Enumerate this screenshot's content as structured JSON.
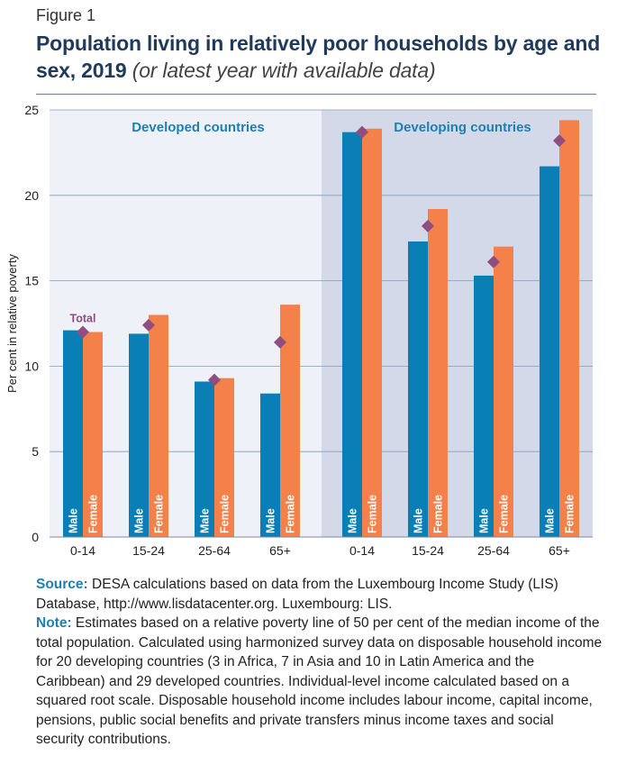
{
  "figure_label": "Figure 1",
  "title": "Population living in relatively poor households by age and sex, 2019",
  "title_sub": "(or latest year with available data)",
  "chart_data": {
    "type": "bar",
    "ylabel": "Per cent in relative poverty",
    "ylim": [
      0,
      25
    ],
    "yticks": [
      0,
      5,
      10,
      15,
      20,
      25
    ],
    "grid": true,
    "groups": [
      {
        "name": "Developed countries",
        "categories": [
          "0-14",
          "15-24",
          "25-64",
          "65+"
        ],
        "male": [
          12.1,
          11.9,
          9.1,
          8.4
        ],
        "female": [
          12.0,
          13.0,
          9.3,
          13.6
        ],
        "total": [
          12.0,
          12.4,
          9.2,
          11.4
        ]
      },
      {
        "name": "Developing countries",
        "categories": [
          "0-14",
          "15-24",
          "25-64",
          "65+"
        ],
        "male": [
          23.7,
          17.3,
          15.3,
          21.7
        ],
        "female": [
          23.9,
          19.2,
          17.0,
          24.4
        ],
        "total": [
          23.7,
          18.2,
          16.1,
          23.2
        ]
      }
    ],
    "bar_labels": {
      "male": "Male",
      "female": "Female"
    },
    "total_label": "Total",
    "colors": {
      "male": "#0a7fb5",
      "female": "#f4804a",
      "total": "#8f4e7f",
      "panel_left": "#eef1f8",
      "panel_right": "#d4d9ea",
      "group_label": "#1f7fb2"
    }
  },
  "notes": {
    "source_label": "Source:",
    "source_text": "DESA calculations based on data from the Luxembourg Income Study (LIS) Database, http://www.lisdatacenter.org. Luxembourg: LIS.",
    "note_label": "Note:",
    "note_text": "Estimates based on a relative poverty line of 50 per cent of the median income of the total population. Calculated using harmonized survey data on disposable household income for 20 developing countries (3 in Africa, 7 in Asia and 10 in Latin America and the Caribbean) and 29 developed countries. Individual-level income calculated based on a squared root scale. Disposable household income includes labour income, capital income, pensions, public social benefits and private transfers minus income taxes and social security contributions."
  }
}
